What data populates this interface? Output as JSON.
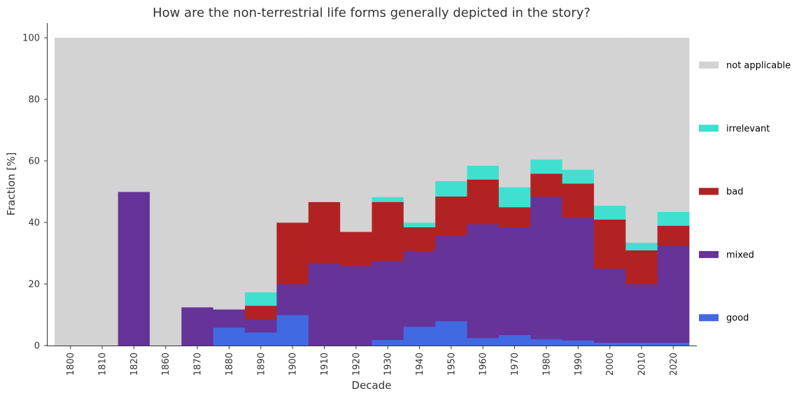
{
  "chart_data": {
    "type": "bar",
    "stacked": true,
    "title": "How are the non-terrestrial life forms generally depicted in the story?",
    "xlabel": "Decade",
    "ylabel": "Fraction [%]",
    "ylim": [
      0,
      100
    ],
    "yticks": [
      "0",
      "20",
      "40",
      "60",
      "80",
      "100"
    ],
    "categories": [
      "1800",
      "1810",
      "1820",
      "1860",
      "1870",
      "1880",
      "1890",
      "1900",
      "1910",
      "1920",
      "1930",
      "1940",
      "1950",
      "1960",
      "1970",
      "1980",
      "1990",
      "2000",
      "2010",
      "2020"
    ],
    "legend_position": "right",
    "series": [
      {
        "name": "good",
        "color": "#4169e1",
        "values": [
          0,
          0,
          0,
          0,
          0,
          5.9,
          4.3,
          10.0,
          0,
          0,
          1.9,
          6.2,
          8.0,
          2.5,
          3.5,
          2.1,
          1.7,
          1.0,
          1.0,
          1.0
        ]
      },
      {
        "name": "mixed",
        "color": "#663399",
        "values": [
          0,
          0,
          50.0,
          0,
          12.5,
          5.9,
          4.4,
          10.0,
          26.7,
          25.9,
          25.6,
          24.6,
          28.0,
          37.0,
          35.0,
          46.3,
          40.0,
          24.0,
          19.0,
          31.5
        ]
      },
      {
        "name": "bad",
        "color": "#b22222",
        "values": [
          0,
          0,
          0,
          0,
          0,
          0,
          4.3,
          20.0,
          20.0,
          11.1,
          19.2,
          7.7,
          12.5,
          14.5,
          6.5,
          7.5,
          11.0,
          16.0,
          11.0,
          6.5
        ]
      },
      {
        "name": "irrelevant",
        "color": "#40e0d0",
        "values": [
          0,
          0,
          0,
          0,
          0,
          0,
          4.4,
          0,
          0,
          0,
          1.6,
          1.5,
          5.0,
          4.5,
          6.5,
          4.6,
          4.5,
          4.5,
          2.5,
          4.5
        ]
      },
      {
        "name": "not applicable",
        "color": "#d3d3d3",
        "values": [
          100,
          100,
          50.0,
          100,
          87.5,
          88.2,
          82.6,
          60.0,
          53.3,
          63.0,
          51.7,
          60.0,
          46.5,
          41.5,
          48.5,
          39.5,
          42.8,
          54.5,
          66.5,
          56.5
        ]
      }
    ],
    "legend_order": [
      "not applicable",
      "irrelevant",
      "bad",
      "mixed",
      "good"
    ],
    "axis_color": "#333333"
  }
}
